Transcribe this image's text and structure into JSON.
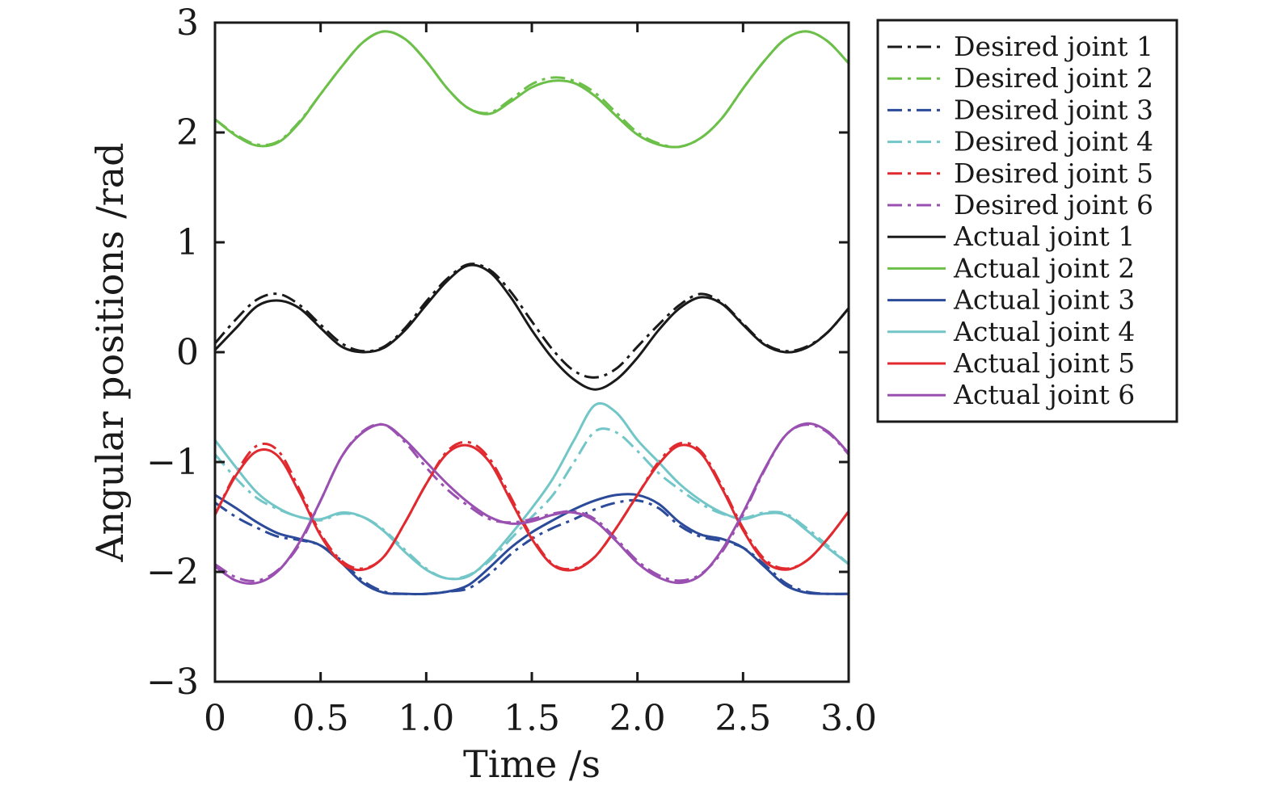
{
  "chart_data": {
    "type": "line",
    "xlabel": "Time /s",
    "ylabel": "Angular positions /rad",
    "xlim": [
      0,
      3.0
    ],
    "ylim": [
      -3,
      3
    ],
    "xticks": [
      0,
      0.5,
      1.0,
      1.5,
      2.0,
      2.5,
      3.0
    ],
    "xtick_labels": [
      "0",
      "0.5",
      "1.0",
      "1.5",
      "2.0",
      "2.5",
      "3.0"
    ],
    "yticks": [
      -3,
      -2,
      -1,
      0,
      1,
      2,
      3
    ],
    "ytick_labels": [
      "−3",
      "−2",
      "−1",
      "0",
      "1",
      "2",
      "3"
    ],
    "grid": false,
    "legend_position": "outside-right",
    "x": [
      0,
      0.1,
      0.2,
      0.3,
      0.4,
      0.5,
      0.6,
      0.7,
      0.8,
      0.9,
      1.0,
      1.1,
      1.2,
      1.3,
      1.4,
      1.5,
      1.6,
      1.7,
      1.8,
      1.9,
      2.0,
      2.1,
      2.2,
      2.3,
      2.4,
      2.5,
      2.6,
      2.7,
      2.8,
      2.9,
      3.0
    ],
    "series": [
      {
        "name": "Desired joint 1",
        "color": "#1a1a1a",
        "dash": "dashdot",
        "values": [
          0.08,
          0.3,
          0.48,
          0.53,
          0.43,
          0.25,
          0.08,
          0.01,
          0.05,
          0.22,
          0.46,
          0.67,
          0.8,
          0.75,
          0.55,
          0.28,
          0.02,
          -0.17,
          -0.23,
          -0.15,
          0.05,
          0.25,
          0.43,
          0.53,
          0.45,
          0.26,
          0.08,
          0.01,
          0.05,
          0.18,
          0.4
        ]
      },
      {
        "name": "Desired joint 2",
        "color": "#6cc04a",
        "dash": "dashdot",
        "values": [
          2.12,
          1.98,
          1.89,
          1.92,
          2.1,
          2.35,
          2.6,
          2.82,
          2.92,
          2.85,
          2.65,
          2.4,
          2.22,
          2.18,
          2.3,
          2.44,
          2.5,
          2.47,
          2.36,
          2.18,
          2.0,
          1.9,
          1.87,
          1.95,
          2.13,
          2.4,
          2.65,
          2.85,
          2.92,
          2.83,
          2.63
        ]
      },
      {
        "name": "Desired joint 3",
        "color": "#2c4a9a",
        "dash": "dashdot",
        "values": [
          -1.37,
          -1.5,
          -1.6,
          -1.68,
          -1.71,
          -1.76,
          -1.9,
          -2.08,
          -2.18,
          -2.2,
          -2.2,
          -2.18,
          -2.15,
          -2.02,
          -1.84,
          -1.7,
          -1.6,
          -1.52,
          -1.43,
          -1.37,
          -1.35,
          -1.42,
          -1.58,
          -1.68,
          -1.72,
          -1.78,
          -1.93,
          -2.1,
          -2.18,
          -2.2,
          -2.2
        ]
      },
      {
        "name": "Desired joint 4",
        "color": "#72c6c8",
        "dash": "dashdot",
        "values": [
          -0.93,
          -1.15,
          -1.33,
          -1.43,
          -1.5,
          -1.53,
          -1.47,
          -1.5,
          -1.62,
          -1.8,
          -1.97,
          -2.06,
          -2.03,
          -1.9,
          -1.7,
          -1.5,
          -1.3,
          -1.0,
          -0.72,
          -0.73,
          -0.9,
          -1.1,
          -1.25,
          -1.38,
          -1.47,
          -1.51,
          -1.46,
          -1.47,
          -1.6,
          -1.76,
          -1.93
        ]
      },
      {
        "name": "Desired joint 5",
        "color": "#e02a2f",
        "dash": "dashdot",
        "values": [
          -1.48,
          -1.1,
          -0.85,
          -0.9,
          -1.25,
          -1.65,
          -1.9,
          -1.97,
          -1.86,
          -1.55,
          -1.2,
          -0.9,
          -0.82,
          -0.97,
          -1.32,
          -1.68,
          -1.93,
          -1.97,
          -1.86,
          -1.6,
          -1.3,
          -1.0,
          -0.83,
          -0.9,
          -1.22,
          -1.6,
          -1.88,
          -1.97,
          -1.9,
          -1.7,
          -1.45
        ]
      },
      {
        "name": "Desired joint 6",
        "color": "#9a50b0",
        "dash": "dashdot",
        "values": [
          -1.93,
          -2.05,
          -2.08,
          -1.98,
          -1.75,
          -1.35,
          -0.95,
          -0.72,
          -0.66,
          -0.82,
          -1.05,
          -1.25,
          -1.4,
          -1.52,
          -1.55,
          -1.52,
          -1.47,
          -1.45,
          -1.52,
          -1.7,
          -1.9,
          -2.03,
          -2.08,
          -2.02,
          -1.82,
          -1.48,
          -1.08,
          -0.76,
          -0.66,
          -0.73,
          -0.93
        ]
      },
      {
        "name": "Actual joint 1",
        "color": "#1a1a1a",
        "dash": "solid",
        "values": [
          0.02,
          0.22,
          0.42,
          0.47,
          0.4,
          0.22,
          0.05,
          0.0,
          0.04,
          0.2,
          0.43,
          0.65,
          0.79,
          0.73,
          0.5,
          0.2,
          -0.06,
          -0.25,
          -0.34,
          -0.25,
          -0.05,
          0.2,
          0.4,
          0.5,
          0.44,
          0.25,
          0.07,
          0.0,
          0.04,
          0.18,
          0.4
        ]
      },
      {
        "name": "Actual joint 2",
        "color": "#6cc04a",
        "dash": "solid",
        "values": [
          2.12,
          1.97,
          1.88,
          1.91,
          2.09,
          2.35,
          2.6,
          2.82,
          2.92,
          2.85,
          2.65,
          2.4,
          2.22,
          2.17,
          2.28,
          2.41,
          2.47,
          2.45,
          2.33,
          2.15,
          1.98,
          1.89,
          1.87,
          1.95,
          2.13,
          2.4,
          2.65,
          2.85,
          2.92,
          2.83,
          2.63
        ]
      },
      {
        "name": "Actual joint 3",
        "color": "#2c4a9a",
        "dash": "solid",
        "values": [
          -1.3,
          -1.42,
          -1.55,
          -1.65,
          -1.7,
          -1.76,
          -1.92,
          -2.1,
          -2.19,
          -2.2,
          -2.2,
          -2.18,
          -2.12,
          -1.96,
          -1.78,
          -1.64,
          -1.53,
          -1.43,
          -1.35,
          -1.3,
          -1.3,
          -1.38,
          -1.55,
          -1.66,
          -1.7,
          -1.78,
          -1.95,
          -2.12,
          -2.19,
          -2.2,
          -2.2
        ]
      },
      {
        "name": "Actual joint 4",
        "color": "#72c6c8",
        "dash": "solid",
        "values": [
          -0.8,
          -1.05,
          -1.28,
          -1.42,
          -1.5,
          -1.52,
          -1.46,
          -1.5,
          -1.63,
          -1.82,
          -1.98,
          -2.06,
          -2.04,
          -1.88,
          -1.66,
          -1.42,
          -1.15,
          -0.8,
          -0.48,
          -0.55,
          -0.8,
          -1.0,
          -1.2,
          -1.35,
          -1.46,
          -1.52,
          -1.47,
          -1.48,
          -1.62,
          -1.78,
          -1.93
        ]
      },
      {
        "name": "Actual joint 5",
        "color": "#e02a2f",
        "dash": "solid",
        "values": [
          -1.48,
          -1.12,
          -0.9,
          -0.95,
          -1.28,
          -1.67,
          -1.92,
          -1.98,
          -1.86,
          -1.55,
          -1.2,
          -0.92,
          -0.85,
          -1.0,
          -1.35,
          -1.7,
          -1.94,
          -1.98,
          -1.86,
          -1.6,
          -1.3,
          -1.02,
          -0.85,
          -0.92,
          -1.24,
          -1.62,
          -1.9,
          -1.98,
          -1.9,
          -1.7,
          -1.45
        ]
      },
      {
        "name": "Actual joint 6",
        "color": "#9a50b0",
        "dash": "solid",
        "values": [
          -1.95,
          -2.08,
          -2.1,
          -1.99,
          -1.73,
          -1.35,
          -0.95,
          -0.73,
          -0.66,
          -0.8,
          -1.0,
          -1.2,
          -1.37,
          -1.5,
          -1.56,
          -1.54,
          -1.48,
          -1.46,
          -1.54,
          -1.72,
          -1.92,
          -2.05,
          -2.1,
          -2.03,
          -1.8,
          -1.46,
          -1.07,
          -0.76,
          -0.65,
          -0.72,
          -0.92
        ]
      }
    ]
  }
}
